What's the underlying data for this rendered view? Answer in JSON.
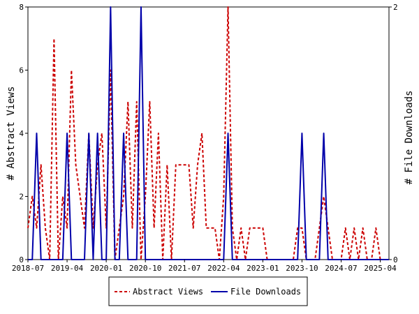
{
  "chart_data": {
    "type": "line",
    "title": "",
    "ylabel_left": "# Abstract Views",
    "ylabel_right": "# File Downloads",
    "ylim_left": [
      0,
      8
    ],
    "ylim_right": [
      0,
      2
    ],
    "yticks_left": [
      "0",
      "2",
      "4",
      "6",
      "8"
    ],
    "yticks_right": [
      "0",
      "2"
    ],
    "xticks": [
      "2018-07",
      "2019-04",
      "2020-01",
      "2020-10",
      "2021-07",
      "2022-04",
      "2023-01",
      "2023-10",
      "2024-07",
      "2025-04"
    ],
    "grid": false,
    "legend_position": "bottom",
    "series": [
      {
        "name": "Abstract Views",
        "axis": "left",
        "color": "#cc0000",
        "dash": "dashed",
        "x": [
          "2018-07",
          "2018-08",
          "2018-09",
          "2018-10",
          "2018-11",
          "2018-12",
          "2019-01",
          "2019-02",
          "2019-03",
          "2019-04",
          "2019-05",
          "2019-06",
          "2019-07",
          "2019-08",
          "2019-09",
          "2019-10",
          "2019-11",
          "2019-12",
          "2020-01",
          "2020-02",
          "2020-03",
          "2020-04",
          "2020-05",
          "2020-06",
          "2020-07",
          "2020-08",
          "2020-09",
          "2020-10",
          "2020-11",
          "2020-12",
          "2021-01",
          "2021-02",
          "2021-03",
          "2021-04",
          "2021-05",
          "2021-06",
          "2021-07",
          "2021-08",
          "2021-09",
          "2021-10",
          "2021-11",
          "2021-12",
          "2022-01",
          "2022-02",
          "2022-03",
          "2022-04",
          "2022-05",
          "2022-06",
          "2022-07",
          "2022-08",
          "2022-09",
          "2022-10",
          "2022-11",
          "2022-12",
          "2023-01",
          "2023-02",
          "2023-03",
          "2023-04",
          "2023-05",
          "2023-06",
          "2023-07",
          "2023-08",
          "2023-09",
          "2023-10",
          "2023-11",
          "2023-12",
          "2024-01",
          "2024-02",
          "2024-03",
          "2024-04",
          "2024-05",
          "2024-06",
          "2024-07",
          "2024-08",
          "2024-09",
          "2024-10",
          "2024-11",
          "2024-12",
          "2025-01",
          "2025-02",
          "2025-03",
          "2025-04",
          "2025-05",
          "2025-06"
        ],
        "values": [
          1,
          2,
          1,
          3,
          1,
          0,
          7,
          0,
          2,
          1,
          6,
          3,
          2,
          1,
          4,
          1,
          3,
          4,
          1,
          6,
          0,
          1,
          2,
          5,
          1,
          5,
          0,
          2,
          5,
          1,
          4,
          0,
          3,
          0,
          3,
          3,
          3,
          3,
          1,
          3,
          4,
          1,
          1,
          1,
          0,
          2,
          8,
          1,
          0,
          1,
          0,
          1,
          1,
          1,
          1,
          0,
          0,
          0,
          0,
          0,
          0,
          0,
          1,
          1,
          0,
          0,
          0,
          1,
          2,
          1,
          0,
          0,
          0,
          1,
          0,
          1,
          0,
          1,
          0,
          0,
          1,
          0,
          0,
          0
        ]
      },
      {
        "name": "File Downloads",
        "axis": "right",
        "color": "#0000aa",
        "dash": "solid",
        "x": [
          "2018-07",
          "2018-08",
          "2018-09",
          "2018-10",
          "2018-11",
          "2018-12",
          "2019-01",
          "2019-02",
          "2019-03",
          "2019-04",
          "2019-05",
          "2019-06",
          "2019-07",
          "2019-08",
          "2019-09",
          "2019-10",
          "2019-11",
          "2019-12",
          "2020-01",
          "2020-02",
          "2020-03",
          "2020-04",
          "2020-05",
          "2020-06",
          "2020-07",
          "2020-08",
          "2020-09",
          "2020-10",
          "2020-11",
          "2020-12",
          "2021-01",
          "2021-02",
          "2021-03",
          "2021-04",
          "2021-05",
          "2021-06",
          "2021-07",
          "2021-08",
          "2021-09",
          "2021-10",
          "2021-11",
          "2021-12",
          "2022-01",
          "2022-02",
          "2022-03",
          "2022-04",
          "2022-05",
          "2022-06",
          "2022-07",
          "2022-08",
          "2022-09",
          "2022-10",
          "2022-11",
          "2022-12",
          "2023-01",
          "2023-02",
          "2023-03",
          "2023-04",
          "2023-05",
          "2023-06",
          "2023-07",
          "2023-08",
          "2023-09",
          "2023-10",
          "2023-11",
          "2023-12",
          "2024-01",
          "2024-02",
          "2024-03",
          "2024-04",
          "2024-05",
          "2024-06",
          "2024-07",
          "2024-08",
          "2024-09",
          "2024-10",
          "2024-11",
          "2024-12",
          "2025-01",
          "2025-02",
          "2025-03",
          "2025-04",
          "2025-05",
          "2025-06"
        ],
        "values": [
          0,
          0,
          1,
          0,
          0,
          0,
          0,
          0,
          0,
          1,
          0,
          0,
          0,
          0,
          1,
          0,
          1,
          0,
          0,
          2,
          0,
          0,
          1,
          0,
          0,
          0,
          2,
          0,
          0,
          0,
          0,
          0,
          0,
          0,
          0,
          0,
          0,
          0,
          0,
          0,
          0,
          0,
          0,
          0,
          0,
          0,
          1,
          0,
          0,
          0,
          0,
          0,
          0,
          0,
          0,
          0,
          0,
          0,
          0,
          0,
          0,
          0,
          0,
          1,
          0,
          0,
          0,
          0,
          1,
          0,
          0,
          0,
          0,
          0,
          0,
          0,
          0,
          0,
          0,
          0,
          0,
          0,
          0,
          0
        ]
      }
    ]
  }
}
